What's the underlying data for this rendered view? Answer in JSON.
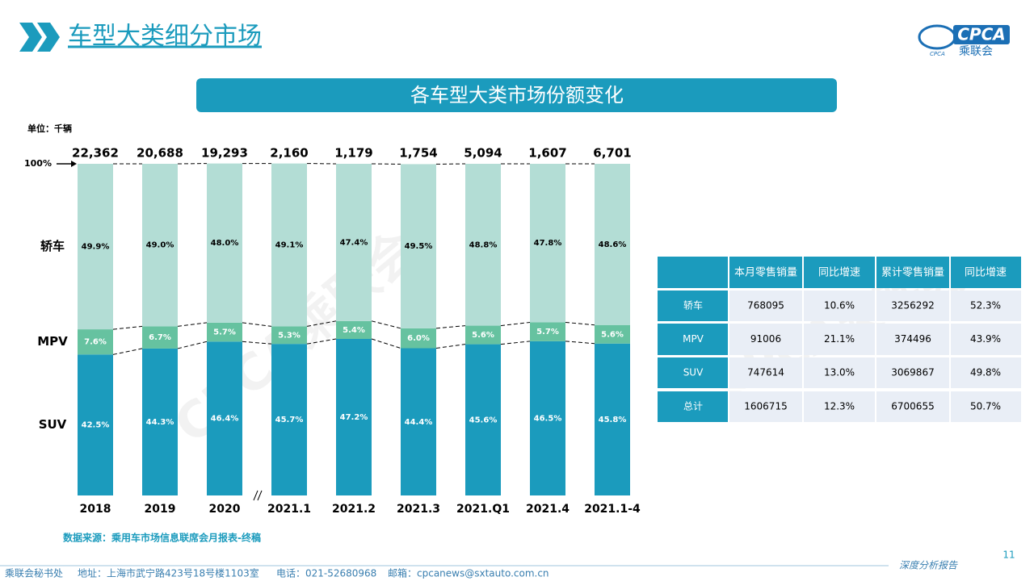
{
  "header": {
    "title": "车型大类细分市场",
    "logo_text": "CPCA",
    "logo_sub": "乘联会",
    "logo_small": "CPCA"
  },
  "banner": "各车型大类市场份额变化",
  "watermark": "CPCA乘联会",
  "chart_data": {
    "type": "stacked_bar",
    "unit": "单位：千辆",
    "categories": [
      "2018",
      "2019",
      "2020",
      "2021.1",
      "2021.2",
      "2021.3",
      "2021.Q1",
      "2021.4",
      "2021.1-4"
    ],
    "totals": {
      "values": [
        22362,
        20688,
        19293,
        2160,
        1179,
        1754,
        5094,
        1607,
        6701
      ],
      "value_labels": [
        "22,362",
        "20,688",
        "19,293",
        "2,160",
        "1,179",
        "1,754",
        "5,094",
        "1,607",
        "6,701"
      ]
    },
    "series": [
      {
        "name": "SUV",
        "color": "#1b9bbd",
        "values": [
          42.5,
          44.3,
          46.4,
          45.7,
          47.2,
          44.4,
          45.6,
          46.5,
          45.8
        ],
        "value_labels": [
          "42.5%",
          "44.3%",
          "46.4%",
          "45.7%",
          "47.2%",
          "44.4%",
          "45.6%",
          "46.5%",
          "45.8%"
        ]
      },
      {
        "name": "MPV",
        "color": "#66c2a0",
        "values": [
          7.6,
          6.7,
          5.7,
          5.3,
          5.4,
          6.0,
          5.6,
          5.7,
          5.6
        ],
        "value_labels": [
          "7.6%",
          "6.7%",
          "5.7%",
          "5.3%",
          "5.4%",
          "6.0%",
          "5.6%",
          "5.7%",
          "5.6%"
        ]
      },
      {
        "name": "轿车",
        "color": "#b3ddd5",
        "values": [
          49.9,
          49.0,
          48.0,
          49.1,
          47.4,
          49.5,
          48.8,
          47.8,
          48.6
        ],
        "value_labels": [
          "49.9%",
          "49.0%",
          "48.0%",
          "49.1%",
          "47.4%",
          "49.5%",
          "48.8%",
          "47.8%",
          "48.6%"
        ]
      }
    ],
    "ylim": [
      0,
      100
    ],
    "yticks": [
      {
        "value": 100,
        "label": "100%"
      }
    ]
  },
  "table": {
    "header": [
      "本月零售销量",
      "同比增速",
      "累计零售销量",
      "同比增速"
    ],
    "rows": [
      [
        "轿车",
        "768095",
        "10.6%",
        "3256292",
        "52.3%"
      ],
      [
        "MPV",
        "91006",
        "21.1%",
        "374496",
        "43.9%"
      ],
      [
        "SUV",
        "747614",
        "13.0%",
        "3069867",
        "49.8%"
      ],
      [
        "总计",
        "1606715",
        "12.3%",
        "6700655",
        "50.7%"
      ]
    ]
  },
  "source": "数据来源：乘用车市场信息联席会月报表-终稿",
  "footer": {
    "org": "乘联会秘书处",
    "address": "地址：上海市武宁路423号18号楼1103室",
    "phone": "电话：021-52680968",
    "email": "邮箱：cpcanews@sxtauto.com.cn",
    "report": "深度分析报告",
    "page": "11"
  }
}
